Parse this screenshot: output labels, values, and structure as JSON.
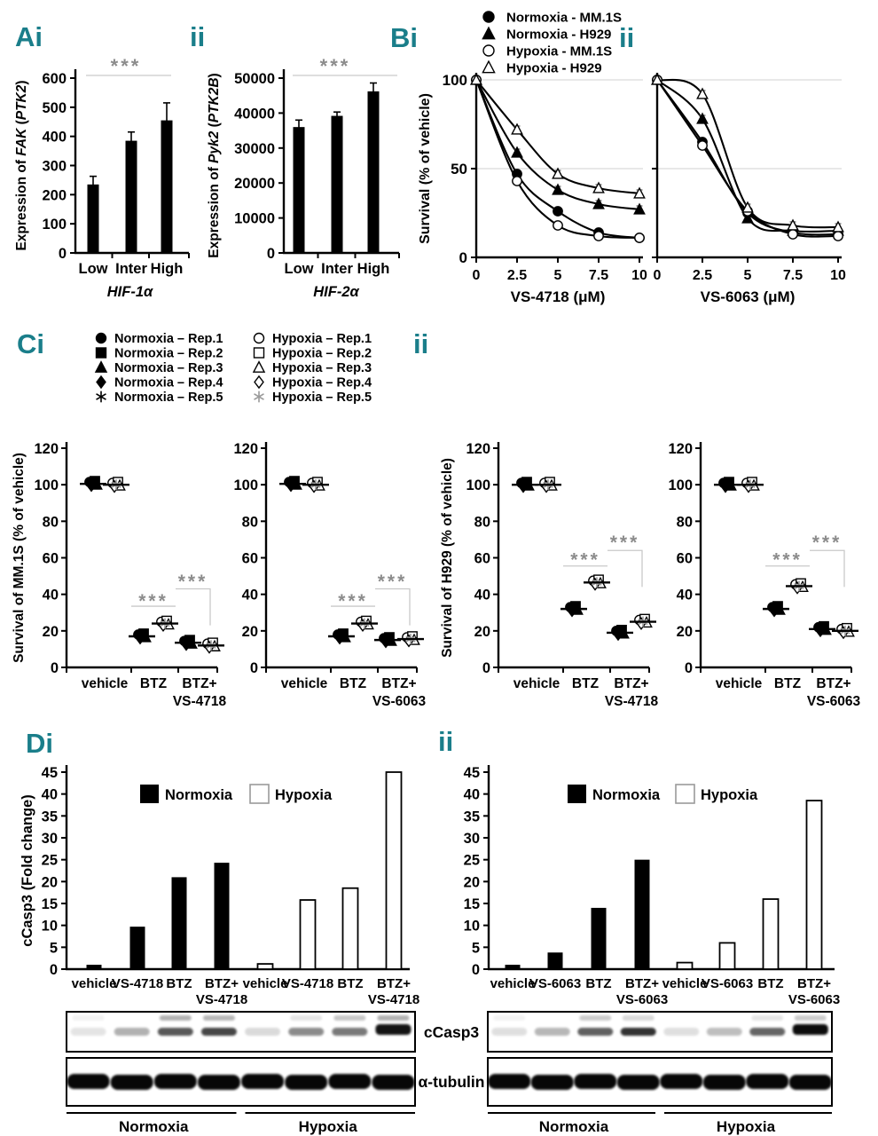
{
  "colors": {
    "ink": "#000000",
    "panel_label": "#1a7e8a",
    "sig": "#8c8c8c",
    "sig_line": "#c9c9c9",
    "grid": "#d9d9d9"
  },
  "panel_labels": {
    "Ai": "Ai",
    "Aii": "ii",
    "Bi": "Bi",
    "Bii": "ii",
    "Ci": "Ci",
    "Cii": "ii",
    "Di": "Di",
    "Dii": "ii"
  },
  "legends": {
    "B": [
      {
        "marker": "circle",
        "variant": "filled",
        "label": "Normoxia - MM.1S"
      },
      {
        "marker": "triangle",
        "variant": "filled",
        "label": "Normoxia - H929"
      },
      {
        "marker": "circle",
        "variant": "open",
        "label": "Hypoxia - MM.1S"
      },
      {
        "marker": "triangle",
        "variant": "open",
        "label": "Hypoxia - H929"
      }
    ],
    "C_col1": [
      {
        "marker": "circle",
        "variant": "filled",
        "label": "Normoxia – Rep.1"
      },
      {
        "marker": "square",
        "variant": "filled",
        "label": "Normoxia – Rep.2"
      },
      {
        "marker": "triangle",
        "variant": "filled",
        "label": "Normoxia – Rep.3"
      },
      {
        "marker": "diamond",
        "variant": "filled",
        "label": "Normoxia – Rep.4"
      },
      {
        "marker": "star",
        "variant": "filled",
        "label": "Normoxia – Rep.5"
      }
    ],
    "C_col2": [
      {
        "marker": "circle",
        "variant": "open",
        "label": "Hypoxia – Rep.1"
      },
      {
        "marker": "square",
        "variant": "open",
        "label": "Hypoxia – Rep.2"
      },
      {
        "marker": "triangle",
        "variant": "open",
        "label": "Hypoxia – Rep.3"
      },
      {
        "marker": "diamond",
        "variant": "open",
        "label": "Hypoxia – Rep.4"
      },
      {
        "marker": "star",
        "variant": "open",
        "label": "Hypoxia – Rep.5"
      }
    ]
  },
  "chart_data": [
    {
      "id": "Ai",
      "type": "bar",
      "ylabel_segments": [
        [
          "Expression of ",
          false
        ],
        [
          "FAK",
          true
        ],
        [
          " (",
          false
        ],
        [
          "PTK2",
          true
        ],
        [
          ")",
          false
        ]
      ],
      "categories": [
        "Low",
        "Inter",
        "High"
      ],
      "values": [
        235,
        385,
        455
      ],
      "errors": [
        28,
        30,
        60
      ],
      "ylim": [
        0,
        600
      ],
      "ytick_step": 100,
      "xtitle": "HIF-1α",
      "sig_label": "***"
    },
    {
      "id": "Aii",
      "type": "bar",
      "ylabel_segments": [
        [
          "Expression of ",
          false
        ],
        [
          "Pyk2",
          true
        ],
        [
          " (",
          false
        ],
        [
          "PTK2B",
          true
        ],
        [
          ")",
          false
        ]
      ],
      "categories": [
        "Low",
        "Inter",
        "High"
      ],
      "values": [
        36000,
        39200,
        46200
      ],
      "errors": [
        2000,
        1100,
        2400
      ],
      "ylim": [
        0,
        50000
      ],
      "ytick_step": 10000,
      "xtitle": "HIF-2α",
      "sig_label": "***"
    },
    {
      "id": "Bi",
      "type": "line",
      "ylabel": "Survival (% of vehicle)",
      "xlabel": "VS-4718 (μM)",
      "x": [
        0,
        2.5,
        5,
        7.5,
        10
      ],
      "xtick_labels": [
        "0",
        "2.5",
        "5",
        "7.5",
        "10"
      ],
      "ylim": [
        0,
        100
      ],
      "yticks": [
        0,
        50,
        100
      ],
      "error": 2,
      "series": [
        {
          "name": "Normoxia - MM.1S",
          "marker": "circle",
          "variant": "filled",
          "values": [
            100,
            47,
            26,
            14,
            11
          ]
        },
        {
          "name": "Normoxia - H929",
          "marker": "triangle",
          "variant": "filled",
          "values": [
            100,
            59,
            38,
            30,
            27
          ]
        },
        {
          "name": "Hypoxia - MM.1S",
          "marker": "circle",
          "variant": "open",
          "values": [
            100,
            43,
            18,
            12,
            11
          ]
        },
        {
          "name": "Hypoxia - H929",
          "marker": "triangle",
          "variant": "open",
          "values": [
            100,
            72,
            47,
            39,
            36
          ]
        }
      ]
    },
    {
      "id": "Bii",
      "type": "line",
      "xlabel": "VS-6063 (μM)",
      "x": [
        0,
        2.5,
        5,
        7.5,
        10
      ],
      "xtick_labels": [
        "0",
        "2.5",
        "5",
        "7.5",
        "10"
      ],
      "ylim": [
        0,
        100
      ],
      "yticks": [
        0,
        50,
        100
      ],
      "error": 2,
      "series": [
        {
          "name": "Normoxia - MM.1S",
          "marker": "circle",
          "variant": "filled",
          "values": [
            100,
            65,
            25,
            14,
            13
          ]
        },
        {
          "name": "Normoxia - H929",
          "marker": "triangle",
          "variant": "filled",
          "values": [
            100,
            78,
            22,
            15,
            15
          ]
        },
        {
          "name": "Hypoxia - MM.1S",
          "marker": "circle",
          "variant": "open",
          "values": [
            100,
            63,
            26,
            13,
            12
          ]
        },
        {
          "name": "Hypoxia - H929",
          "marker": "triangle",
          "variant": "open",
          "values": [
            100,
            92,
            28,
            18,
            17
          ]
        }
      ]
    },
    {
      "id": "Ci1",
      "type": "scatter",
      "ylabel": "Survival of MM.1S (% of vehicle)",
      "ylim": [
        0,
        120
      ],
      "ytick_step": 20,
      "replicates": 5,
      "categories": [
        "vehicle",
        "BTZ",
        "BTZ+"
      ],
      "category_sublabels": {
        "2": "VS-4718"
      },
      "groups": [
        {
          "name": "Normoxia",
          "variant": "filled",
          "means": [
            100.5,
            17,
            13.5
          ]
        },
        {
          "name": "Hypoxia",
          "variant": "open",
          "means": [
            100,
            24,
            12
          ]
        }
      ],
      "sig": [
        {
          "label": "***",
          "kind": "line",
          "cat": 1,
          "line_y": 33.5,
          "star_y": 38
        },
        {
          "label": "***",
          "kind": "bracket",
          "cat_from": 1,
          "cat_to": 2,
          "y": 43,
          "star_y": 48.5,
          "drop_to": 23
        }
      ]
    },
    {
      "id": "Ci2",
      "type": "scatter",
      "ylim": [
        0,
        120
      ],
      "ytick_step": 20,
      "replicates": 5,
      "categories": [
        "vehicle",
        "BTZ",
        "BTZ+"
      ],
      "category_sublabels": {
        "2": "VS-6063"
      },
      "groups": [
        {
          "name": "Normoxia",
          "variant": "filled",
          "means": [
            100.5,
            17,
            15
          ]
        },
        {
          "name": "Hypoxia",
          "variant": "open",
          "means": [
            100,
            24,
            15.5
          ]
        }
      ],
      "sig": [
        {
          "label": "***",
          "kind": "line",
          "cat": 1,
          "line_y": 33.5,
          "star_y": 38
        },
        {
          "label": "***",
          "kind": "bracket",
          "cat_from": 1,
          "cat_to": 2,
          "y": 43,
          "star_y": 48.5,
          "drop_to": 23
        }
      ]
    },
    {
      "id": "Cii1",
      "type": "scatter",
      "ylabel": "Survival of H929 (% of vehicle)",
      "ylim": [
        0,
        120
      ],
      "ytick_step": 20,
      "replicates": 5,
      "categories": [
        "vehicle",
        "BTZ",
        "BTZ+"
      ],
      "category_sublabels": {
        "2": "VS-4718"
      },
      "groups": [
        {
          "name": "Normoxia",
          "variant": "filled",
          "means": [
            100,
            32,
            19
          ]
        },
        {
          "name": "Hypoxia",
          "variant": "open",
          "means": [
            100,
            46.5,
            25
          ]
        }
      ],
      "sig": [
        {
          "label": "***",
          "kind": "line",
          "cat": 1,
          "line_y": 55.5,
          "star_y": 60.5
        },
        {
          "label": "***",
          "kind": "bracket",
          "cat_from": 1,
          "cat_to": 2,
          "y": 64,
          "star_y": 70,
          "drop_to": 44
        }
      ]
    },
    {
      "id": "Cii2",
      "type": "scatter",
      "ylim": [
        0,
        120
      ],
      "ytick_step": 20,
      "replicates": 5,
      "categories": [
        "vehicle",
        "BTZ",
        "BTZ+"
      ],
      "category_sublabels": {
        "2": "VS-6063"
      },
      "groups": [
        {
          "name": "Normoxia",
          "variant": "filled",
          "means": [
            100,
            32,
            21
          ]
        },
        {
          "name": "Hypoxia",
          "variant": "open",
          "means": [
            100,
            44.5,
            20
          ]
        }
      ],
      "sig": [
        {
          "label": "***",
          "kind": "line",
          "cat": 1,
          "line_y": 55.5,
          "star_y": 60.5
        },
        {
          "label": "***",
          "kind": "bracket",
          "cat_from": 1,
          "cat_to": 2,
          "y": 64,
          "star_y": 70,
          "drop_to": 44
        }
      ]
    },
    {
      "id": "Di",
      "type": "bar-grouped",
      "ylabel": "cCasp3 (Fold change)",
      "ylim": [
        0,
        45
      ],
      "ytick_step": 5,
      "legend": [
        "Normoxia",
        "Hypoxia"
      ],
      "groups": [
        {
          "name": "Normoxia",
          "variant": "filled",
          "categories": [
            [
              "vehicle"
            ],
            [
              "VS-4718"
            ],
            [
              "BTZ"
            ],
            [
              "BTZ+",
              "VS-4718"
            ]
          ],
          "values": [
            1,
            9.7,
            21,
            24.3
          ]
        },
        {
          "name": "Hypoxia",
          "variant": "open",
          "categories": [
            [
              "vehicle"
            ],
            [
              "VS-4718"
            ],
            [
              "BTZ"
            ],
            [
              "BTZ+",
              "VS-4718"
            ]
          ],
          "values": [
            1.2,
            15.8,
            18.5,
            45
          ]
        }
      ]
    },
    {
      "id": "Dii",
      "type": "bar-grouped",
      "ylim": [
        0,
        45
      ],
      "ytick_step": 5,
      "legend": [
        "Normoxia",
        "Hypoxia"
      ],
      "groups": [
        {
          "name": "Normoxia",
          "variant": "filled",
          "categories": [
            [
              "vehicle"
            ],
            [
              "VS-6063"
            ],
            [
              "BTZ"
            ],
            [
              "BTZ+",
              "VS-6063"
            ]
          ],
          "values": [
            1,
            3.8,
            14,
            25
          ]
        },
        {
          "name": "Hypoxia",
          "variant": "open",
          "categories": [
            [
              "vehicle"
            ],
            [
              "VS-6063"
            ],
            [
              "BTZ"
            ],
            [
              "BTZ+",
              "VS-6063"
            ]
          ],
          "values": [
            1.5,
            6,
            16,
            38.5
          ]
        }
      ]
    }
  ],
  "blot_antibody_labels": [
    "cCasp3",
    "α-tubulin"
  ],
  "blots": [
    {
      "id": "i",
      "group_labels": [
        "Normoxia",
        "Hypoxia"
      ],
      "lane_count": 8,
      "ccasp3_intensities": [
        0.1,
        0.3,
        0.65,
        0.72,
        0.14,
        0.45,
        0.52,
        0.92
      ],
      "ccasp3_upper_smudge": [
        0.05,
        0,
        0.3,
        0.28,
        0,
        0.1,
        0.22,
        0.3
      ],
      "tubulin_intensities": [
        0.97,
        0.97,
        0.97,
        0.97,
        0.97,
        0.97,
        0.97,
        0.97
      ]
    },
    {
      "id": "ii",
      "group_labels": [
        "Normoxia",
        "Hypoxia"
      ],
      "lane_count": 8,
      "ccasp3_intensities": [
        0.12,
        0.28,
        0.62,
        0.8,
        0.12,
        0.25,
        0.6,
        0.95
      ],
      "ccasp3_upper_smudge": [
        0.05,
        0,
        0.2,
        0.15,
        0,
        0,
        0.1,
        0.2
      ],
      "tubulin_intensities": [
        0.97,
        0.97,
        0.97,
        0.97,
        0.97,
        0.97,
        0.97,
        0.97
      ]
    }
  ]
}
